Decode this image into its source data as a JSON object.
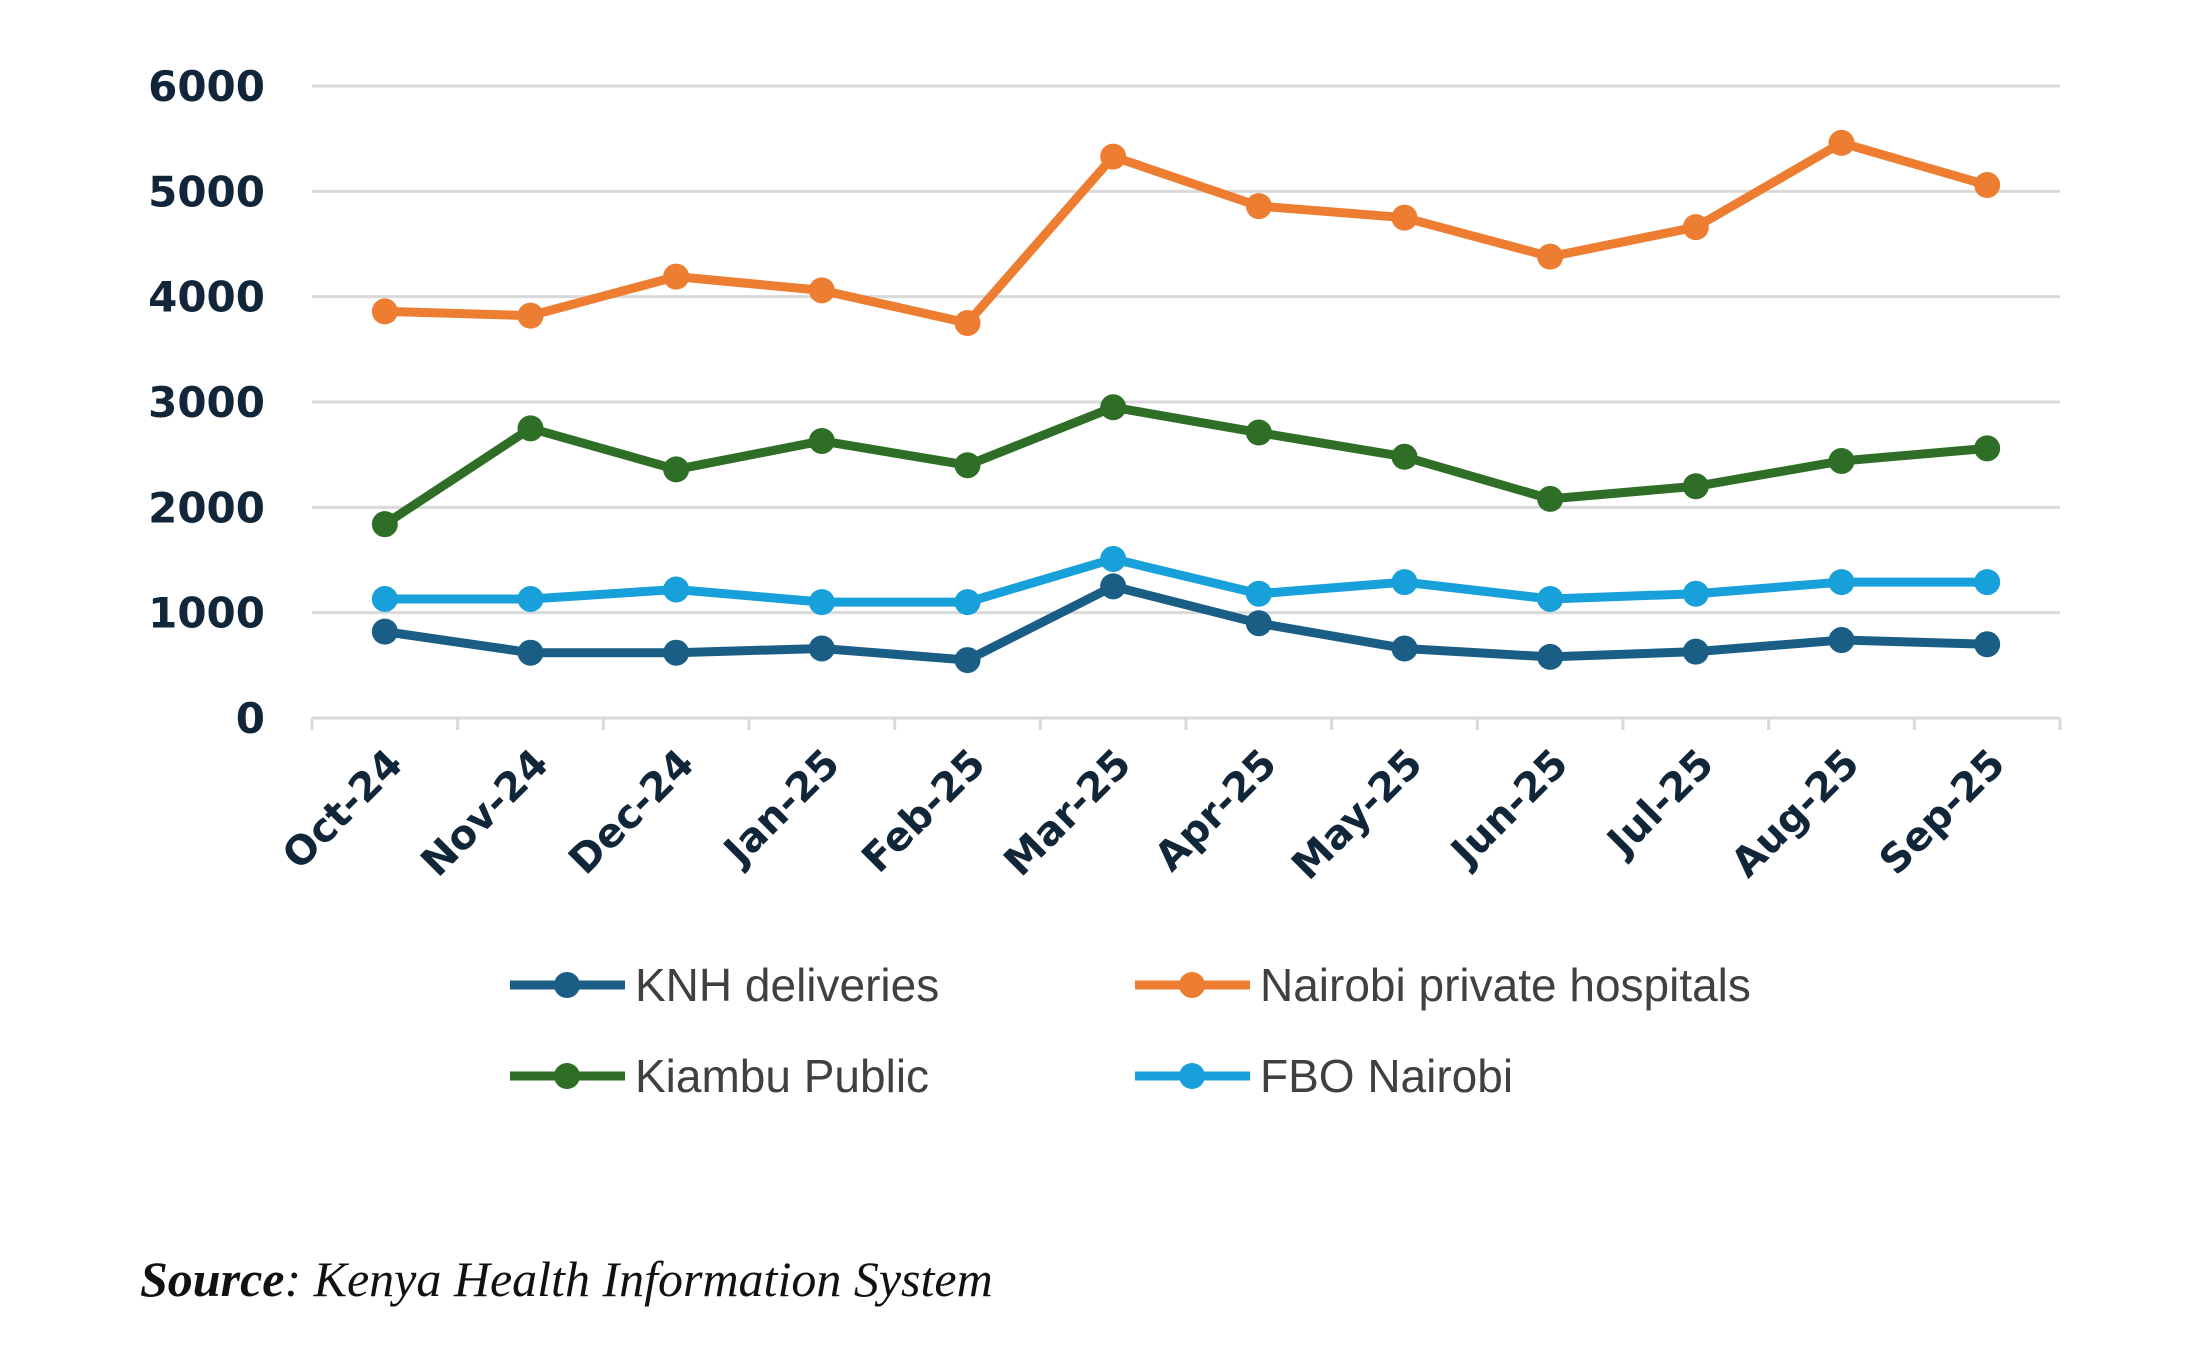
{
  "chart_data": {
    "type": "line",
    "categories": [
      "Oct-24",
      "Nov-24",
      "Dec-24",
      "Jan-25",
      "Feb-25",
      "Mar-25",
      "Apr-25",
      "May-25",
      "Jun-25",
      "Jul-25",
      "Aug-25",
      "Sep-25"
    ],
    "ylim": [
      0,
      6000
    ],
    "yticks": [
      0,
      1000,
      2000,
      3000,
      4000,
      5000,
      6000
    ],
    "grid": true,
    "legend_position": "bottom",
    "series": [
      {
        "name": "KNH deliveries",
        "color": "#1b5e85",
        "values": [
          820,
          620,
          620,
          660,
          550,
          1250,
          900,
          660,
          580,
          630,
          740,
          700
        ]
      },
      {
        "name": "Nairobi private hospitals",
        "color": "#ed7d31",
        "values": [
          3860,
          3820,
          4190,
          4060,
          3750,
          5330,
          4860,
          4750,
          4380,
          4660,
          5460,
          5060
        ]
      },
      {
        "name": "Kiambu Public",
        "color": "#2e6e26",
        "values": [
          1840,
          2750,
          2360,
          2630,
          2400,
          2950,
          2710,
          2480,
          2080,
          2200,
          2440,
          2560
        ]
      },
      {
        "name": "FBO Nairobi",
        "color": "#18a0db",
        "values": [
          1130,
          1130,
          1220,
          1100,
          1100,
          1510,
          1180,
          1290,
          1130,
          1180,
          1290,
          1290
        ]
      }
    ]
  },
  "source_label": "Source",
  "source_text": ": Kenya Health Information System"
}
